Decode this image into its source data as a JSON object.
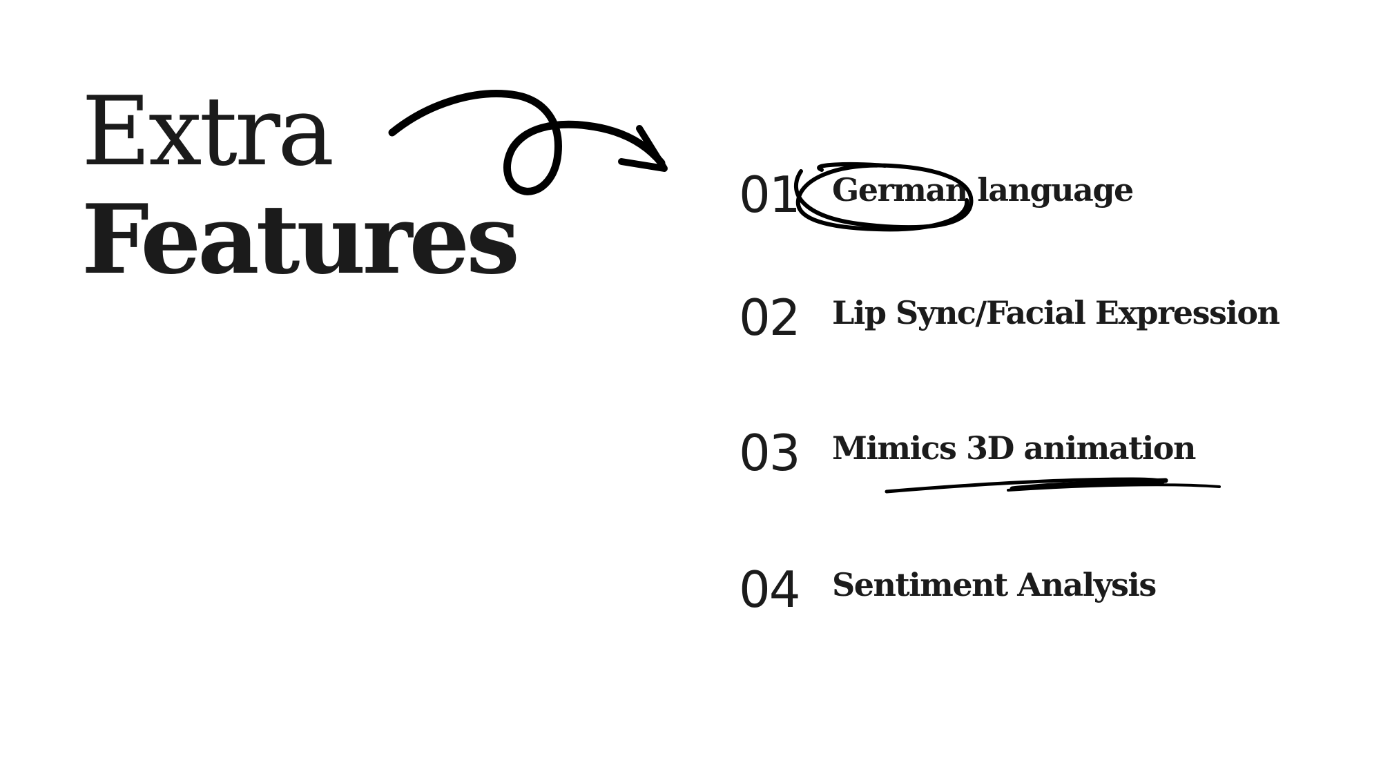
{
  "title": {
    "line1": "Extra",
    "line2": "Features"
  },
  "features": [
    {
      "number": "01",
      "label": "German language"
    },
    {
      "number": "02",
      "label": "Lip Sync/Facial Expression"
    },
    {
      "number": "03",
      "label": "Mimics 3D animation"
    },
    {
      "number": "04",
      "label": "Sentiment Analysis"
    }
  ],
  "annotations": {
    "arrow": "curly-arrow-icon",
    "circle": "hand-drawn-circle-icon",
    "underline": "hand-drawn-underline-icon"
  },
  "colors": {
    "background": "#ffffff",
    "text": "#1b1b1b",
    "ink": "#000000"
  }
}
